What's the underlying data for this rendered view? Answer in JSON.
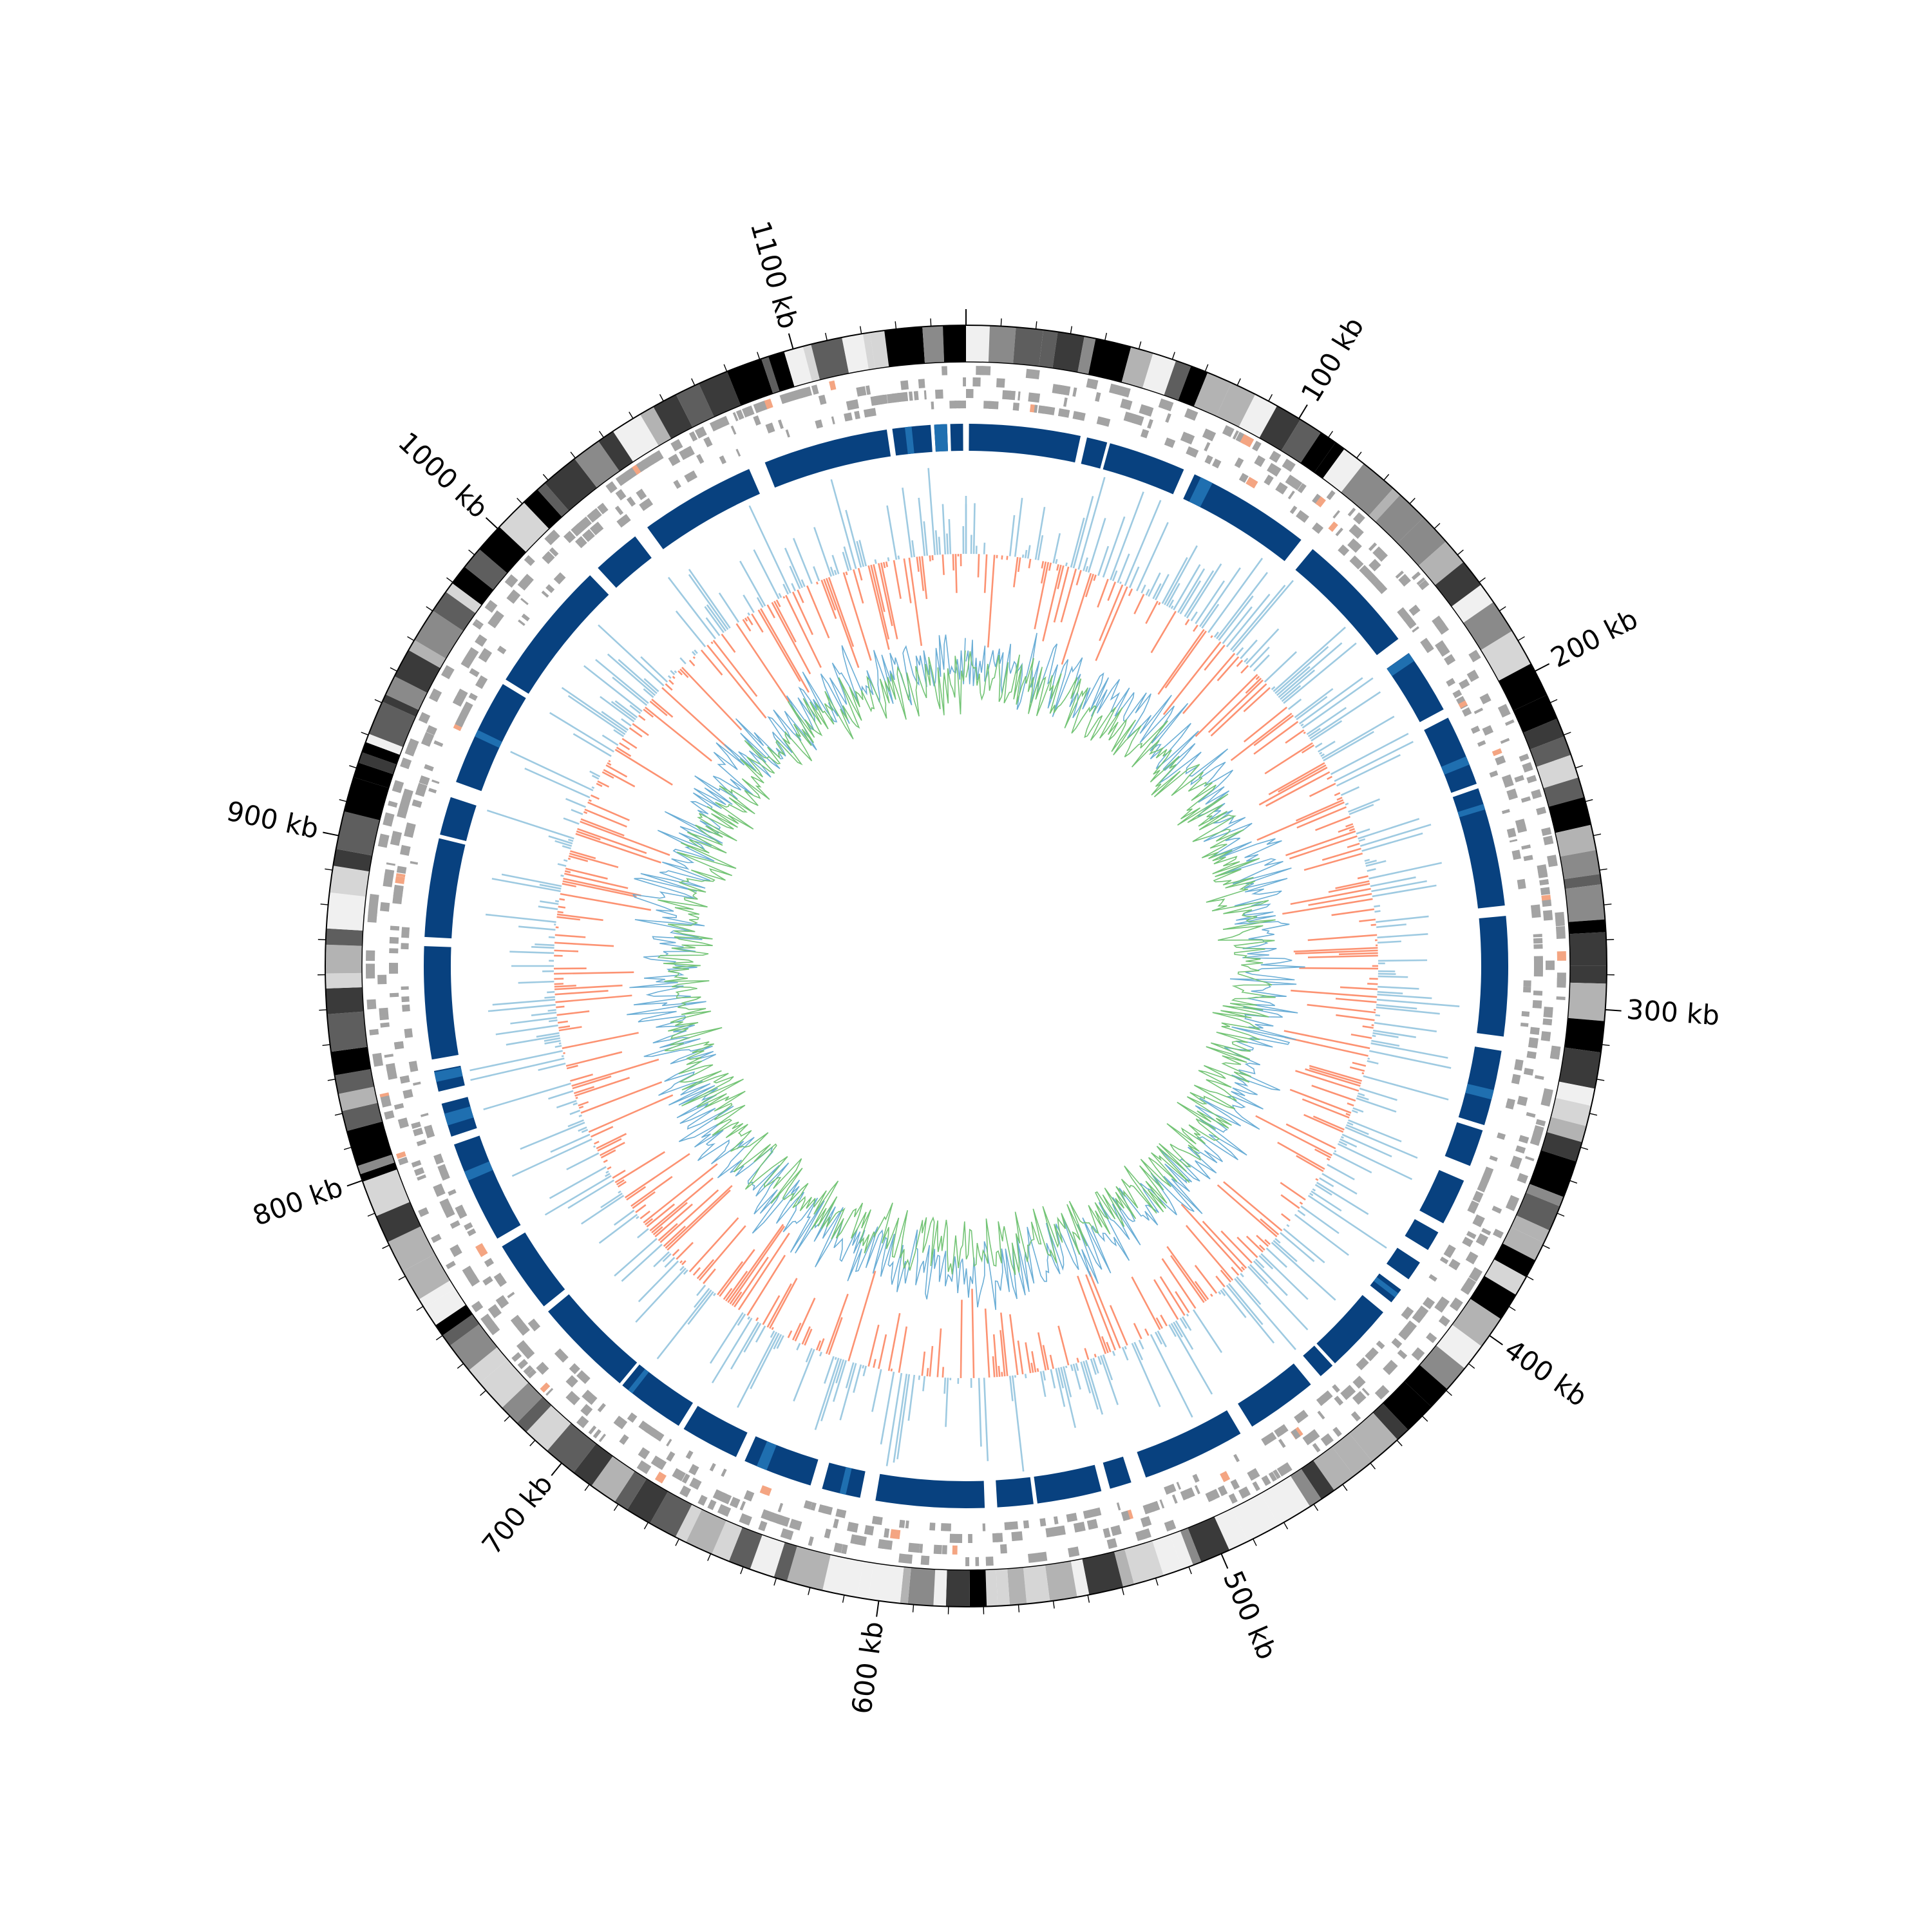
{
  "genome": {
    "total_kb": 1150,
    "axis_labels": [
      "100 kb",
      "200 kb",
      "300 kb",
      "400 kb",
      "500 kb",
      "600 kb",
      "700 kb",
      "800 kb",
      "900 kb",
      "1000 kb",
      "1100 kb"
    ],
    "label_positions_kb": [
      100,
      200,
      300,
      400,
      500,
      600,
      700,
      800,
      900,
      1000,
      1100
    ],
    "minor_tick_step_kb": 10
  },
  "tracks": [
    {
      "name": "gc-skew-bands",
      "kind": "grayscale bands"
    },
    {
      "name": "feature-ticks",
      "kind": "gray tiles"
    },
    {
      "name": "synteny-blocks",
      "kind": "blue blocks"
    },
    {
      "name": "coverage-histogram",
      "kind": "up/down bars"
    },
    {
      "name": "inner-signal",
      "kind": "two overlaid line signals"
    }
  ],
  "colors": {
    "band_palette": [
      "#000000",
      "#3a3a3a",
      "#5e5e5e",
      "#8a8a8a",
      "#b3b3b3",
      "#d6d6d6",
      "#f0f0f0"
    ],
    "feature": "#a3a3a3",
    "feature_accent": "#f4a582",
    "block": "#08417f",
    "block_highlight": "#1f6fb0",
    "bar_up": "#9ecae1",
    "bar_down": "#fc9272",
    "line_a": "#6baed6",
    "line_b": "#74c476"
  }
}
